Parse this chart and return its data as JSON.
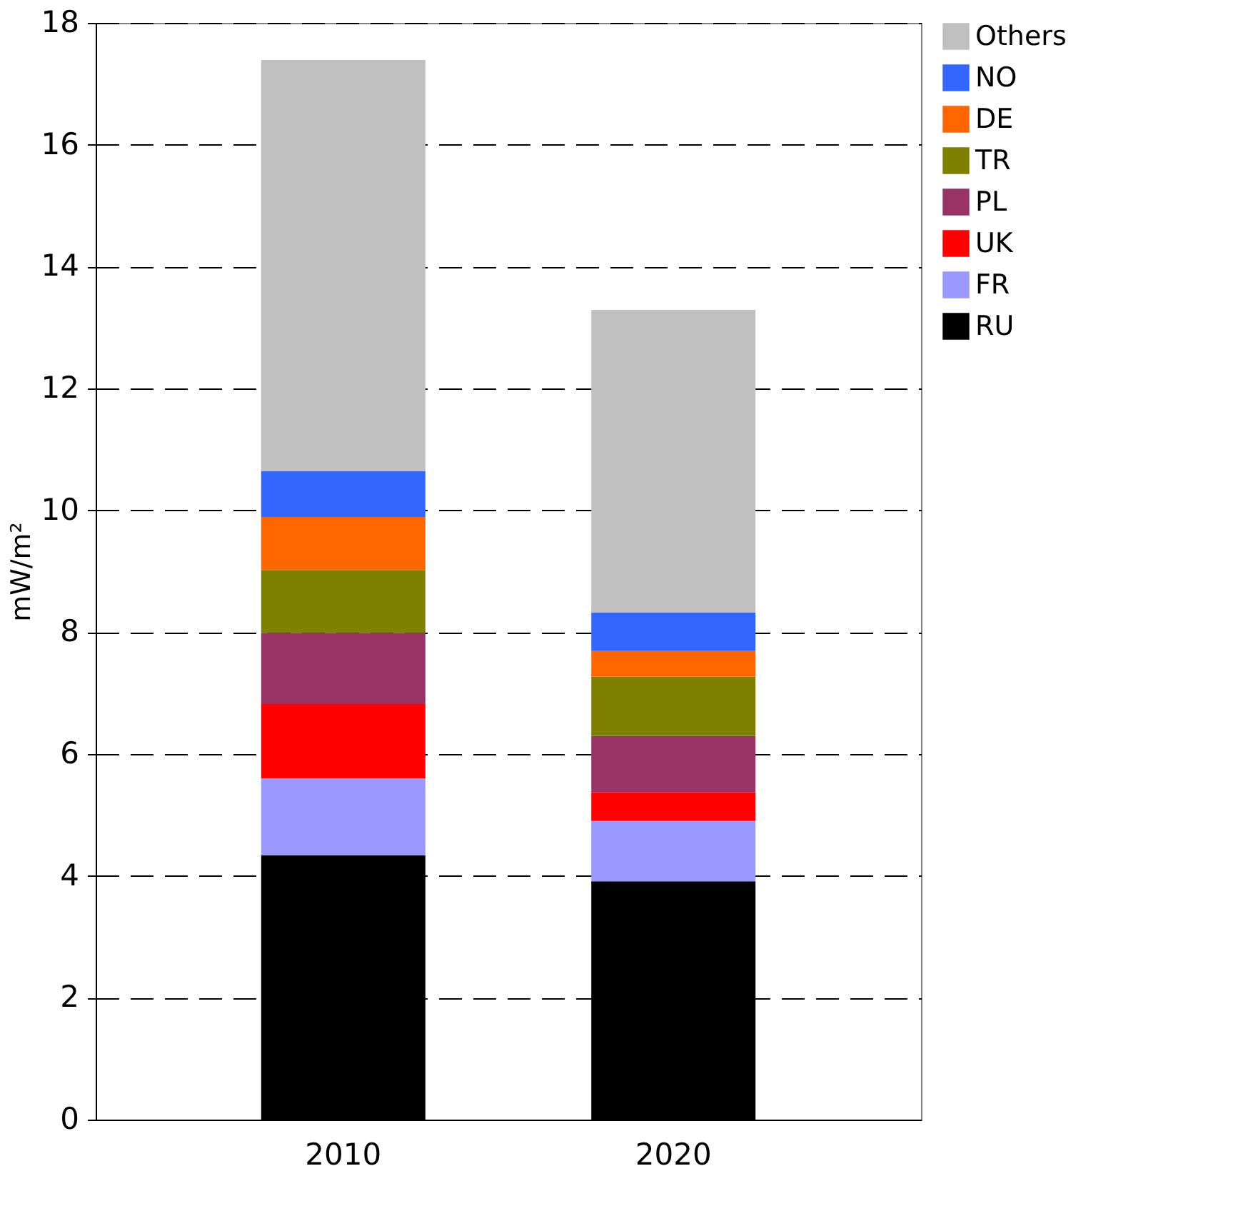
{
  "chart_data": {
    "type": "bar",
    "stacked": true,
    "ylabel": "mW/m²",
    "categories": [
      "2010",
      "2020"
    ],
    "series": [
      {
        "name": "RU",
        "color": "#000000",
        "values": [
          4.34,
          3.91
        ]
      },
      {
        "name": "FR",
        "color": "#9999ff",
        "values": [
          1.26,
          0.99
        ]
      },
      {
        "name": "UK",
        "color": "#ff0000",
        "values": [
          1.22,
          0.47
        ]
      },
      {
        "name": "PL",
        "color": "#993366",
        "values": [
          1.17,
          0.93
        ]
      },
      {
        "name": "TR",
        "color": "#808000",
        "values": [
          1.03,
          0.97
        ]
      },
      {
        "name": "DE",
        "color": "#ff6600",
        "values": [
          0.87,
          0.42
        ]
      },
      {
        "name": "NO",
        "color": "#3366ff",
        "values": [
          0.75,
          0.63
        ]
      },
      {
        "name": "Others",
        "color": "#c0c0c0",
        "values": [
          6.75,
          4.97
        ]
      }
    ],
    "ylim": [
      0,
      18
    ],
    "yticks": [
      0,
      2,
      4,
      6,
      8,
      10,
      12,
      14,
      16,
      18
    ],
    "grid": "y",
    "legend": "right"
  }
}
